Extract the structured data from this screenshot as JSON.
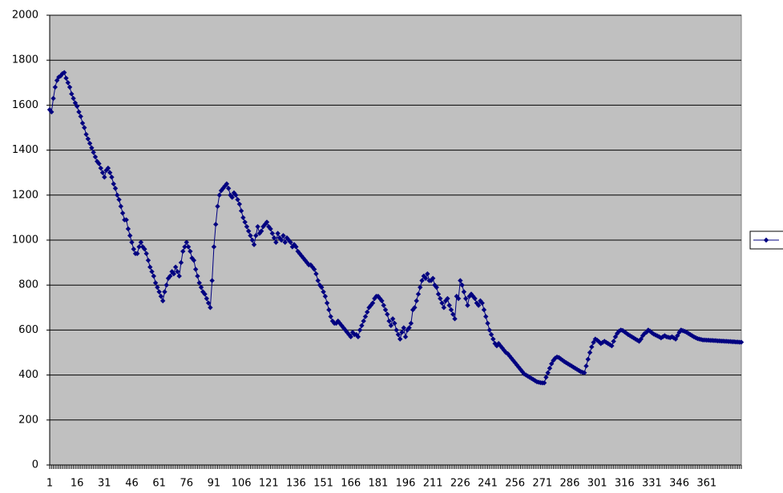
{
  "chart_data": {
    "type": "line",
    "categories": [
      "1",
      null,
      null,
      null,
      null,
      null,
      null,
      null,
      null,
      null,
      null,
      null,
      null,
      null,
      null,
      "16",
      null,
      null,
      null,
      null,
      null,
      null,
      null,
      null,
      null,
      null,
      null,
      null,
      null,
      null,
      "31",
      null,
      null,
      null,
      null,
      null,
      null,
      null,
      null,
      null,
      null,
      null,
      null,
      null,
      null,
      "46",
      null,
      null,
      null,
      null,
      null,
      null,
      null,
      null,
      null,
      null,
      null,
      null,
      null,
      null,
      "61",
      null,
      null,
      null,
      null,
      null,
      null,
      null,
      null,
      null,
      null,
      null,
      null,
      null,
      null,
      "76",
      null,
      null,
      null,
      null,
      null,
      null,
      null,
      null,
      null,
      null,
      null,
      null,
      null,
      null,
      "91",
      null,
      null,
      null,
      null,
      null,
      null,
      null,
      null,
      null,
      null,
      null,
      null,
      null,
      null,
      "106",
      null,
      null,
      null,
      null,
      null,
      null,
      null,
      null,
      null,
      null,
      null,
      null,
      null,
      null,
      "121",
      null,
      null,
      null,
      null,
      null,
      null,
      null,
      null,
      null,
      null,
      null,
      null,
      null,
      null,
      "136",
      null,
      null,
      null,
      null,
      null,
      null,
      null,
      null,
      null,
      null,
      null,
      null,
      null,
      null,
      "151",
      null,
      null,
      null,
      null,
      null,
      null,
      null,
      null,
      null,
      null,
      null,
      null,
      null,
      null,
      "166",
      null,
      null,
      null,
      null,
      null,
      null,
      null,
      null,
      null,
      null,
      null,
      null,
      null,
      null,
      "181",
      null,
      null,
      null,
      null,
      null,
      null,
      null,
      null,
      null,
      null,
      null,
      null,
      null,
      null,
      "196",
      null,
      null,
      null,
      null,
      null,
      null,
      null,
      null,
      null,
      null,
      null,
      null,
      null,
      null,
      "211",
      null,
      null,
      null,
      null,
      null,
      null,
      null,
      null,
      null,
      null,
      null,
      null,
      null,
      null,
      "226",
      null,
      null,
      null,
      null,
      null,
      null,
      null,
      null,
      null,
      null,
      null,
      null,
      null,
      null,
      "241",
      null,
      null,
      null,
      null,
      null,
      null,
      null,
      null,
      null,
      null,
      null,
      null,
      null,
      null,
      "256",
      null,
      null,
      null,
      null,
      null,
      null,
      null,
      null,
      null,
      null,
      null,
      null,
      null,
      null,
      "271",
      null,
      null,
      null,
      null,
      null,
      null,
      null,
      null,
      null,
      null,
      null,
      null,
      null,
      null,
      "286",
      null,
      null,
      null,
      null,
      null,
      null,
      null,
      null,
      null,
      null,
      null,
      null,
      null,
      null,
      "301",
      null,
      null,
      null,
      null,
      null,
      null,
      null,
      null,
      null,
      null,
      null,
      null,
      null,
      null,
      "316",
      null,
      null,
      null,
      null,
      null,
      null,
      null,
      null,
      null,
      null,
      null,
      null,
      null,
      null,
      "331",
      null,
      null,
      null,
      null,
      null,
      null,
      null,
      null,
      null,
      null,
      null,
      null,
      null,
      null,
      "346",
      null,
      null,
      null,
      null,
      null,
      null,
      null,
      null,
      null,
      null,
      null,
      null,
      null,
      null,
      "361",
      null,
      null,
      null,
      null,
      null,
      null,
      null,
      null,
      null,
      null,
      null,
      null,
      null,
      null,
      null,
      null,
      null,
      null,
      null
    ],
    "series": [
      {
        "color": "#000080",
        "values": [
          1580,
          1570,
          1630,
          1680,
          1710,
          1725,
          1730,
          1740,
          1745,
          1720,
          1700,
          1680,
          1650,
          1630,
          1610,
          1595,
          1570,
          1550,
          1520,
          1500,
          1470,
          1450,
          1430,
          1410,
          1390,
          1370,
          1350,
          1340,
          1320,
          1300,
          1280,
          1310,
          1320,
          1300,
          1280,
          1250,
          1230,
          1200,
          1180,
          1150,
          1120,
          1090,
          1090,
          1050,
          1020,
          990,
          960,
          940,
          940,
          970,
          990,
          970,
          960,
          940,
          910,
          880,
          860,
          840,
          810,
          790,
          770,
          750,
          730,
          770,
          800,
          830,
          840,
          860,
          850,
          880,
          860,
          840,
          900,
          950,
          970,
          990,
          970,
          950,
          920,
          910,
          870,
          840,
          810,
          790,
          770,
          760,
          740,
          720,
          700,
          820,
          970,
          1070,
          1150,
          1200,
          1220,
          1230,
          1240,
          1250,
          1230,
          1200,
          1190,
          1210,
          1200,
          1180,
          1160,
          1130,
          1100,
          1080,
          1060,
          1040,
          1020,
          1000,
          980,
          1020,
          1060,
          1030,
          1040,
          1060,
          1070,
          1080,
          1060,
          1050,
          1030,
          1010,
          990,
          1030,
          1010,
          1000,
          1020,
          990,
          1010,
          1000,
          990,
          970,
          980,
          970,
          950,
          940,
          930,
          920,
          910,
          900,
          890,
          890,
          880,
          870,
          850,
          820,
          800,
          790,
          770,
          750,
          720,
          690,
          660,
          640,
          630,
          630,
          640,
          630,
          620,
          610,
          600,
          590,
          580,
          570,
          590,
          580,
          580,
          570,
          600,
          620,
          640,
          660,
          680,
          700,
          710,
          720,
          740,
          750,
          750,
          740,
          730,
          710,
          690,
          670,
          640,
          620,
          650,
          630,
          600,
          580,
          560,
          590,
          610,
          570,
          600,
          610,
          630,
          690,
          700,
          730,
          760,
          790,
          820,
          840,
          830,
          850,
          820,
          820,
          830,
          800,
          790,
          760,
          740,
          720,
          700,
          730,
          740,
          710,
          690,
          670,
          650,
          750,
          740,
          820,
          800,
          770,
          740,
          710,
          750,
          760,
          750,
          740,
          720,
          710,
          730,
          720,
          690,
          660,
          630,
          600,
          580,
          560,
          540,
          530,
          540,
          530,
          520,
          510,
          500,
          495,
          485,
          475,
          465,
          455,
          445,
          435,
          425,
          415,
          405,
          400,
          395,
          390,
          385,
          380,
          375,
          370,
          368,
          366,
          365,
          365,
          390,
          410,
          430,
          450,
          465,
          475,
          480,
          478,
          472,
          466,
          460,
          455,
          450,
          445,
          440,
          435,
          430,
          425,
          420,
          415,
          412,
          410,
          440,
          470,
          500,
          525,
          545,
          560,
          555,
          548,
          540,
          545,
          550,
          545,
          540,
          535,
          530,
          550,
          570,
          585,
          595,
          600,
          598,
          592,
          586,
          580,
          575,
          570,
          565,
          560,
          555,
          550,
          560,
          575,
          585,
          590,
          600,
          595,
          588,
          582,
          578,
          574,
          570,
          565,
          570,
          575,
          570,
          568,
          566,
          570,
          565,
          560,
          575,
          590,
          600,
          597,
          594,
          590,
          585,
          580,
          575,
          570,
          566,
          562,
          560,
          558,
          556,
          556,
          555,
          555,
          554,
          554,
          553,
          553,
          552,
          552,
          551,
          551,
          550,
          550,
          549,
          549,
          548,
          548,
          547,
          547,
          546,
          546
        ]
      }
    ],
    "ylim": [
      0,
      2000
    ],
    "yticks": [
      0,
      200,
      400,
      600,
      800,
      1000,
      1200,
      1400,
      1600,
      1800,
      2000
    ],
    "grid": true,
    "plot_background": "#c0c0c0"
  }
}
